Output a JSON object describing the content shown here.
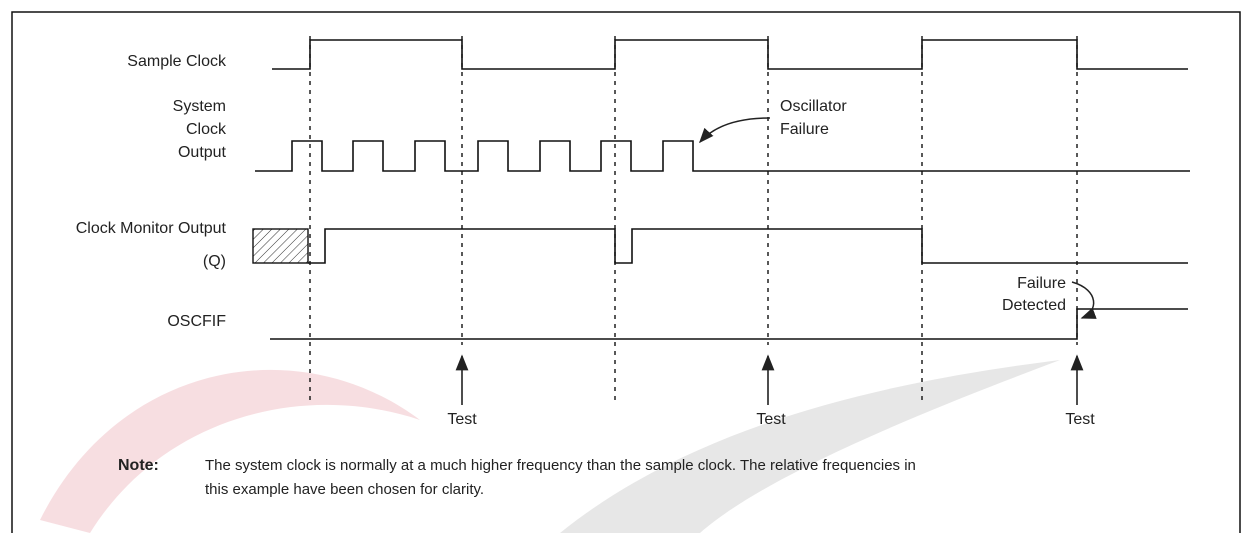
{
  "signals": [
    {
      "label_lines": [
        "Sample Clock"
      ]
    },
    {
      "label_lines": [
        "System",
        "Clock",
        "Output"
      ]
    },
    {
      "label_lines": [
        "Clock Monitor Output",
        "(Q)"
      ]
    },
    {
      "label_lines": [
        "OSCFIF"
      ]
    }
  ],
  "annotations": {
    "oscillator_failure": [
      "Oscillator",
      "Failure"
    ],
    "failure_detected": [
      "Failure",
      "Detected"
    ]
  },
  "test_markers": [
    "Test",
    "Test",
    "Test"
  ],
  "note": {
    "label": "Note:",
    "text_lines": [
      "The system clock is normally at a much higher frequency than the sample clock. The relative frequencies in",
      "this example have been chosen for clarity."
    ]
  }
}
